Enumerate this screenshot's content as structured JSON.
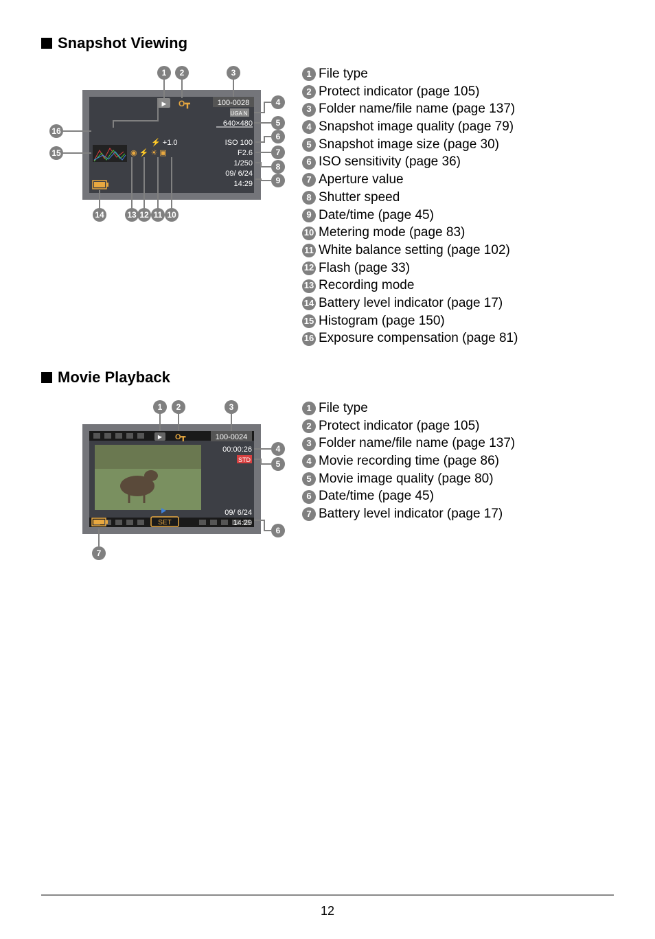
{
  "page_number": "12",
  "sections": {
    "snapshot": {
      "title": "Snapshot Viewing",
      "osd": {
        "folder_file": "100-0028",
        "quality_icon": "UGA N",
        "size": "640×480",
        "iso": "ISO 100",
        "aperture": "F2.6",
        "shutter": "1/250",
        "date": "09/  6/24",
        "time": "14:29",
        "ev": "+1.0"
      },
      "legend": [
        {
          "n": "1",
          "t": "File type"
        },
        {
          "n": "2",
          "t": "Protect indicator (page 105)"
        },
        {
          "n": "3",
          "t": "Folder name/file name (page 137)"
        },
        {
          "n": "4",
          "t": "Snapshot image quality (page 79)"
        },
        {
          "n": "5",
          "t": "Snapshot image size (page 30)"
        },
        {
          "n": "6",
          "t": "ISO sensitivity (page 36)"
        },
        {
          "n": "7",
          "t": "Aperture value"
        },
        {
          "n": "8",
          "t": "Shutter speed"
        },
        {
          "n": "9",
          "t": "Date/time (page 45)"
        },
        {
          "n": "10",
          "t": "Metering mode (page 83)"
        },
        {
          "n": "11",
          "t": "White balance setting (page 102)"
        },
        {
          "n": "12",
          "t": "Flash (page 33)"
        },
        {
          "n": "13",
          "t": "Recording mode"
        },
        {
          "n": "14",
          "t": "Battery level indicator (page 17)"
        },
        {
          "n": "15",
          "t": "Histogram (page 150)"
        },
        {
          "n": "16",
          "t": "Exposure compensation (page 81)"
        }
      ],
      "colors": {
        "frame": "#74757a",
        "screen_bg": "#3d3f45",
        "highlight": "#e8a840",
        "histogram_r": "#d84040",
        "histogram_g": "#40c040",
        "histogram_b": "#4080d8"
      }
    },
    "movie": {
      "title": "Movie Playback",
      "osd": {
        "folder_file": "100-0024",
        "rec_time": "00:00:26",
        "quality": "STD",
        "date": "09/  6/24",
        "time": "14:29",
        "set_label": "SET"
      },
      "legend": [
        {
          "n": "1",
          "t": "File type"
        },
        {
          "n": "2",
          "t": "Protect indicator (page 105)"
        },
        {
          "n": "3",
          "t": "Folder name/file name (page 137)"
        },
        {
          "n": "4",
          "t": "Movie recording time (page 86)"
        },
        {
          "n": "5",
          "t": "Movie image quality (page 80)"
        },
        {
          "n": "6",
          "t": "Date/time (page 45)"
        },
        {
          "n": "7",
          "t": "Battery level indicator (page 17)"
        }
      ],
      "colors": {
        "frame": "#74757a",
        "screen_bg": "#3d3f45",
        "film_strip": "#1a1a1a",
        "deer_bg": "#7a9060",
        "set_border": "#e8a840",
        "progress": "#4080d8"
      }
    }
  }
}
